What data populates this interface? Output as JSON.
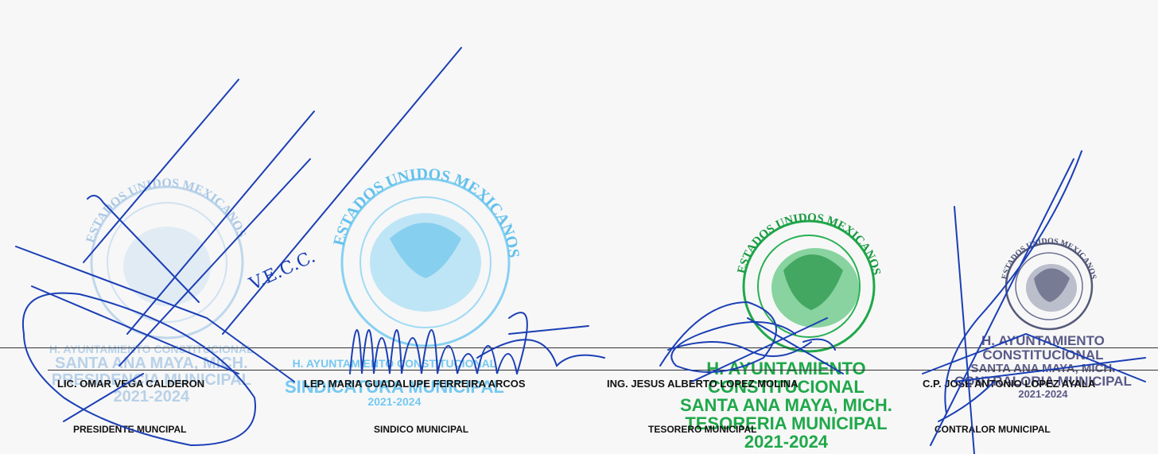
{
  "signatories": [
    {
      "name": "LIC. OMAR VEGA CALDERON",
      "role": "PRESIDENTE MUNCIPAL"
    },
    {
      "name": "LEP. MARIA GUADALUPE FERREIRA ARCOS",
      "role": "SINDICO MUNICIPAL"
    },
    {
      "name": "ING. JESUS ALBERTO LOPEZ MOLINA",
      "role": "TESORERO MUNICIPAL"
    },
    {
      "name": "C.P. JOSE ANTONIO LOPEZ AYALA",
      "role": "CONTRALOR MUNICIPAL"
    }
  ],
  "stamps": [
    {
      "seal_text": "ESTADOS UNIDOS MEXICANOS",
      "line1": "H. AYUNTAMIENTO CONSTITUCIONAL",
      "line2": "SANTA ANA MAYA, MICH.",
      "line3": "PRESIDENCIA MUNICIPAL",
      "line4": "2021-2024",
      "color": "#8fb9e0"
    },
    {
      "seal_text": "ESTADOS UNIDOS MEXICANOS",
      "line1": "H. AYUNTAMIENTO CONSTITUCIONAL",
      "line2": "SINDICATURA MUNICIPAL",
      "line3": "2021-2024",
      "color": "#5ec0f0"
    },
    {
      "seal_text": "ESTADOS UNIDOS MEXICANOS",
      "line1": "H. AYUNTAMIENTO",
      "line2": "CONSTITUCIONAL",
      "line3": "SANTA ANA MAYA, MICH.",
      "line4": "TESORERIA MUNICIPAL",
      "line5": "2021-2024",
      "color": "#1fa84a"
    },
    {
      "seal_text": "ESTADOS UNIDOS MEXICANOS",
      "line1": "H. AYUNTAMIENTO",
      "line2": "CONSTITUCIONAL",
      "line3": "SANTA ANA MAYA, MICH.",
      "line4": "CONTRALORIA MUNICIPAL",
      "line5": "2021-2024",
      "color": "#5a5a88"
    }
  ],
  "handwritten_initials": "V.E.C.C."
}
